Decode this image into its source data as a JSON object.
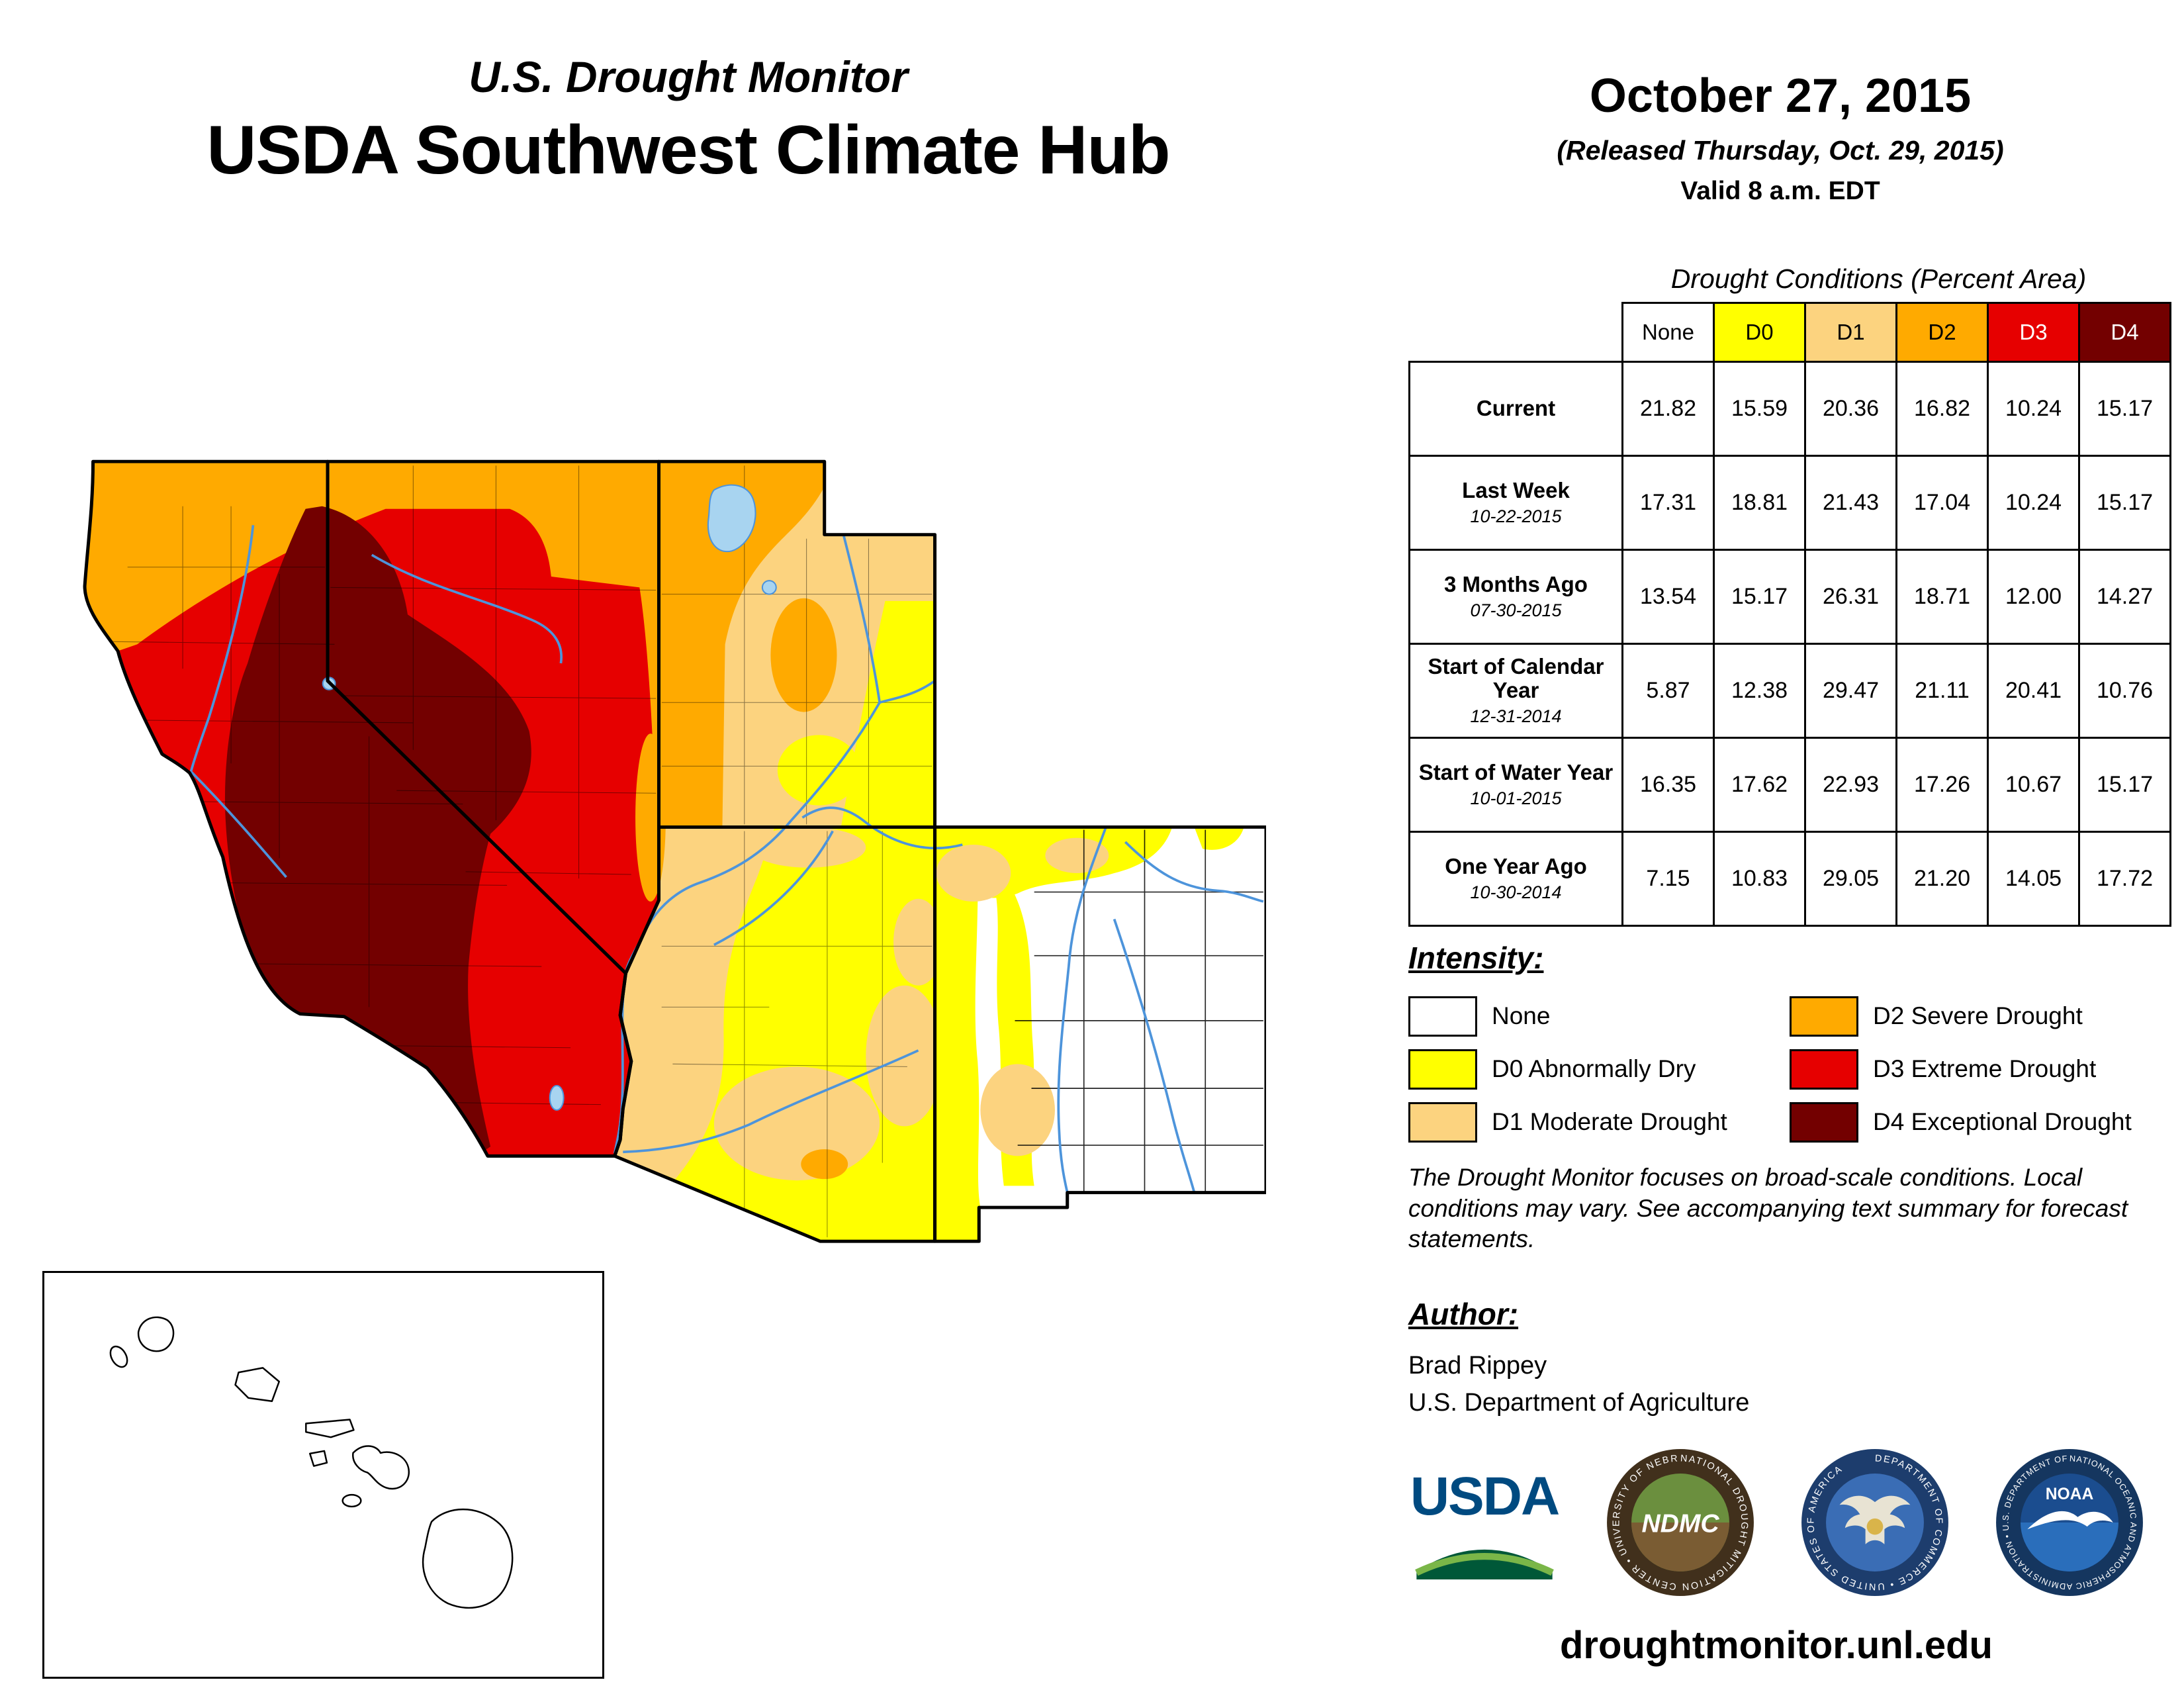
{
  "header": {
    "program": "U.S. Drought Monitor",
    "title": "USDA Southwest Climate Hub",
    "date": "October 27, 2015",
    "released": "(Released Thursday, Oct. 29, 2015)",
    "valid": "Valid 8 a.m. EDT"
  },
  "table": {
    "title": "Drought Conditions (Percent Area)",
    "columns": [
      {
        "label": "None",
        "bg": "#FFFFFF",
        "fg": "#000000"
      },
      {
        "label": "D0",
        "bg": "#FFFF00",
        "fg": "#000000"
      },
      {
        "label": "D1",
        "bg": "#FCD37F",
        "fg": "#000000"
      },
      {
        "label": "D2",
        "bg": "#FFAA00",
        "fg": "#000000"
      },
      {
        "label": "D3",
        "bg": "#E60000",
        "fg": "#FFFFFF"
      },
      {
        "label": "D4",
        "bg": "#730000",
        "fg": "#FFFFFF"
      }
    ],
    "rows": [
      {
        "label": "Current",
        "date": "",
        "values": [
          "21.82",
          "15.59",
          "20.36",
          "16.82",
          "10.24",
          "15.17"
        ]
      },
      {
        "label": "Last Week",
        "date": "10-22-2015",
        "values": [
          "17.31",
          "18.81",
          "21.43",
          "17.04",
          "10.24",
          "15.17"
        ]
      },
      {
        "label": "3 Months Ago",
        "date": "07-30-2015",
        "values": [
          "13.54",
          "15.17",
          "26.31",
          "18.71",
          "12.00",
          "14.27"
        ]
      },
      {
        "label": "Start of Calendar Year",
        "date": "12-31-2014",
        "values": [
          "5.87",
          "12.38",
          "29.47",
          "21.11",
          "20.41",
          "10.76"
        ]
      },
      {
        "label": "Start of Water Year",
        "date": "10-01-2015",
        "values": [
          "16.35",
          "17.62",
          "22.93",
          "17.26",
          "10.67",
          "15.17"
        ]
      },
      {
        "label": "One Year Ago",
        "date": "10-30-2014",
        "values": [
          "7.15",
          "10.83",
          "29.05",
          "21.20",
          "14.05",
          "17.72"
        ]
      }
    ]
  },
  "legend": {
    "title": "Intensity:",
    "items": [
      {
        "code": "none",
        "label": "None",
        "color": "#FFFFFF"
      },
      {
        "code": "d0",
        "label": "D0 Abnormally Dry",
        "color": "#FFFF00"
      },
      {
        "code": "d1",
        "label": "D1 Moderate Drought",
        "color": "#FCD37F"
      },
      {
        "code": "d2",
        "label": "D2 Severe Drought",
        "color": "#FFAA00"
      },
      {
        "code": "d3",
        "label": "D3 Extreme Drought",
        "color": "#E60000"
      },
      {
        "code": "d4",
        "label": "D4 Exceptional Drought",
        "color": "#730000"
      }
    ]
  },
  "disclaimer": "The Drought Monitor focuses on broad-scale conditions. Local conditions may vary. See accompanying text summary for forecast statements.",
  "author": {
    "heading": "Author:",
    "name": "Brad Rippey",
    "organization": "U.S. Department of Agriculture"
  },
  "footer": {
    "url": "droughtmonitor.unl.edu"
  },
  "logos": {
    "usda": "USDA",
    "ndmc": "NDMC",
    "ndmc_ring": "NATIONAL DROUGHT MITIGATION CENTER • UNIVERSITY OF NEBRASKA",
    "doc_ring": "DEPARTMENT OF COMMERCE • UNITED STATES OF AMERICA",
    "noaa": "NOAA",
    "noaa_ring": "NATIONAL OCEANIC AND ATMOSPHERIC ADMINISTRATION • U.S. DEPARTMENT OF COMMERCE"
  }
}
